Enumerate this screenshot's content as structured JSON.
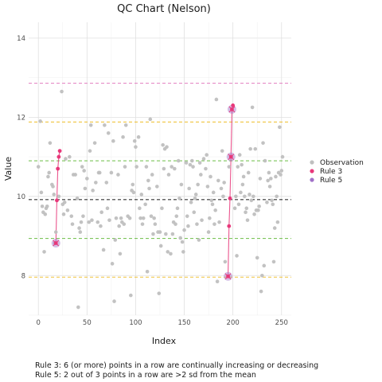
{
  "chart_data": {
    "type": "scatter",
    "title": "QC Chart (Nelson)",
    "xlabel": "Index",
    "ylabel": "Value",
    "xlim": [
      -10,
      260
    ],
    "ylim": [
      7.0,
      14.4
    ],
    "x_ticks": [
      0,
      50,
      100,
      150,
      200,
      250
    ],
    "y_ticks": [
      8,
      10,
      12,
      14
    ],
    "grid": true,
    "legend_position": "right",
    "reference_lines": {
      "mean": 9.92,
      "plus_1sd": 10.9,
      "minus_1sd": 8.94,
      "plus_2sd": 11.88,
      "minus_2sd": 7.96,
      "plus_3sd": 12.86
    },
    "series": [
      {
        "name": "Observation",
        "color": "#bfbfbf",
        "points": [
          [
            0,
            10.75
          ],
          [
            2,
            11.9
          ],
          [
            3,
            10.1
          ],
          [
            4,
            9.75
          ],
          [
            5,
            9.6
          ],
          [
            6,
            8.6
          ],
          [
            7,
            9.55
          ],
          [
            8,
            9.7
          ],
          [
            9,
            9.75
          ],
          [
            10,
            10.5
          ],
          [
            11,
            10.6
          ],
          [
            12,
            11.35
          ],
          [
            14,
            10.3
          ],
          [
            15,
            10.25
          ],
          [
            16,
            10.05
          ],
          [
            17,
            8.82
          ],
          [
            18,
            9.1
          ],
          [
            21,
            10.0
          ],
          [
            24,
            12.65
          ],
          [
            25,
            9.8
          ],
          [
            26,
            9.55
          ],
          [
            27,
            9.85
          ],
          [
            28,
            10.95
          ],
          [
            30,
            9.65
          ],
          [
            32,
            11.0
          ],
          [
            34,
            9.5
          ],
          [
            35,
            9.3
          ],
          [
            36,
            10.55
          ],
          [
            38,
            10.55
          ],
          [
            40,
            9.95
          ],
          [
            41,
            7.2
          ],
          [
            42,
            9.2
          ],
          [
            43,
            9.1
          ],
          [
            44,
            9.35
          ],
          [
            45,
            10.75
          ],
          [
            46,
            9.5
          ],
          [
            47,
            10.65
          ],
          [
            48,
            10.2
          ],
          [
            50,
            10.45
          ],
          [
            52,
            9.35
          ],
          [
            53,
            11.15
          ],
          [
            54,
            11.8
          ],
          [
            55,
            9.4
          ],
          [
            56,
            10.15
          ],
          [
            58,
            11.35
          ],
          [
            59,
            10.35
          ],
          [
            61,
            9.35
          ],
          [
            62,
            10.6
          ],
          [
            63,
            10.6
          ],
          [
            64,
            9.25
          ],
          [
            65,
            9.6
          ],
          [
            67,
            8.65
          ],
          [
            68,
            11.8
          ],
          [
            70,
            10.35
          ],
          [
            71,
            9.7
          ],
          [
            72,
            11.6
          ],
          [
            73,
            9.4
          ],
          [
            75,
            10.6
          ],
          [
            76,
            8.3
          ],
          [
            77,
            11.4
          ],
          [
            78,
            7.35
          ],
          [
            79,
            8.9
          ],
          [
            80,
            9.45
          ],
          [
            82,
            10.55
          ],
          [
            83,
            9.25
          ],
          [
            84,
            8.55
          ],
          [
            85,
            9.45
          ],
          [
            86,
            9.35
          ],
          [
            87,
            11.5
          ],
          [
            88,
            9.3
          ],
          [
            89,
            10.75
          ],
          [
            90,
            11.8
          ],
          [
            92,
            9.5
          ],
          [
            94,
            9.45
          ],
          [
            95,
            7.5
          ],
          [
            96,
            10.15
          ],
          [
            97,
            10.3
          ],
          [
            98,
            10.1
          ],
          [
            99,
            11.4
          ],
          [
            100,
            11.25
          ],
          [
            101,
            10.75
          ],
          [
            103,
            11.5
          ],
          [
            104,
            9.7
          ],
          [
            105,
            9.45
          ],
          [
            106,
            10.05
          ],
          [
            107,
            9.3
          ],
          [
            108,
            9.45
          ],
          [
            110,
            9.8
          ],
          [
            111,
            10.75
          ],
          [
            112,
            8.1
          ],
          [
            113,
            10.4
          ],
          [
            114,
            10.2
          ],
          [
            115,
            11.95
          ],
          [
            116,
            9.5
          ],
          [
            117,
            10.55
          ],
          [
            118,
            9.05
          ],
          [
            119,
            9.45
          ],
          [
            120,
            9.3
          ],
          [
            122,
            10.25
          ],
          [
            123,
            9.1
          ],
          [
            124,
            7.55
          ],
          [
            125,
            9.1
          ],
          [
            126,
            8.75
          ],
          [
            127,
            9.7
          ],
          [
            128,
            11.3
          ],
          [
            129,
            10.7
          ],
          [
            130,
            11.2
          ],
          [
            131,
            9.05
          ],
          [
            132,
            11.25
          ],
          [
            133,
            8.6
          ],
          [
            134,
            10.55
          ],
          [
            136,
            8.55
          ],
          [
            137,
            10.75
          ],
          [
            138,
            9.05
          ],
          [
            139,
            9.35
          ],
          [
            140,
            10.7
          ],
          [
            141,
            9.3
          ],
          [
            142,
            9.5
          ],
          [
            143,
            9.7
          ],
          [
            144,
            10.9
          ],
          [
            145,
            9.95
          ],
          [
            146,
            8.95
          ],
          [
            147,
            10.3
          ],
          [
            148,
            8.85
          ],
          [
            149,
            8.6
          ],
          [
            150,
            9.15
          ],
          [
            152,
            10.85
          ],
          [
            153,
            9.5
          ],
          [
            154,
            9.25
          ],
          [
            155,
            10.2
          ],
          [
            156,
            10.8
          ],
          [
            157,
            9.85
          ],
          [
            158,
            10.9
          ],
          [
            159,
            10.75
          ],
          [
            160,
            9.6
          ],
          [
            161,
            9.95
          ],
          [
            162,
            10.05
          ],
          [
            163,
            9.3
          ],
          [
            164,
            10.3
          ],
          [
            165,
            8.9
          ],
          [
            166,
            10.85
          ],
          [
            167,
            10.55
          ],
          [
            168,
            9.4
          ],
          [
            170,
            10.95
          ],
          [
            172,
            10.7
          ],
          [
            173,
            11.05
          ],
          [
            174,
            10.25
          ],
          [
            175,
            9.1
          ],
          [
            176,
            9.45
          ],
          [
            177,
            10.5
          ],
          [
            178,
            9.9
          ],
          [
            179,
            9.8
          ],
          [
            180,
            10.1
          ],
          [
            181,
            9.3
          ],
          [
            182,
            9.65
          ],
          [
            183,
            12.45
          ],
          [
            184,
            7.85
          ],
          [
            185,
            10.4
          ],
          [
            186,
            9.35
          ],
          [
            188,
            10.2
          ],
          [
            189,
            11.15
          ],
          [
            190,
            10.0
          ],
          [
            191,
            10.35
          ],
          [
            192,
            8.35
          ],
          [
            196,
            10.75
          ],
          [
            202,
            9.7
          ],
          [
            203,
            10.0
          ],
          [
            204,
            8.5
          ],
          [
            205,
            10.75
          ],
          [
            206,
            9.8
          ],
          [
            207,
            11.05
          ],
          [
            208,
            10.1
          ],
          [
            209,
            10.8
          ],
          [
            210,
            10.3
          ],
          [
            211,
            10.5
          ],
          [
            212,
            10.0
          ],
          [
            213,
            9.6
          ],
          [
            214,
            9.7
          ],
          [
            215,
            9.4
          ],
          [
            216,
            10.6
          ],
          [
            217,
            10.05
          ],
          [
            218,
            11.2
          ],
          [
            219,
            9.9
          ],
          [
            220,
            12.25
          ],
          [
            221,
            10.0
          ],
          [
            222,
            9.55
          ],
          [
            223,
            11.2
          ],
          [
            224,
            9.65
          ],
          [
            225,
            8.45
          ],
          [
            226,
            9.65
          ],
          [
            227,
            9.75
          ],
          [
            228,
            10.45
          ],
          [
            229,
            7.6
          ],
          [
            230,
            8.0
          ],
          [
            231,
            11.35
          ],
          [
            232,
            8.25
          ],
          [
            233,
            10.9
          ],
          [
            235,
            9.85
          ],
          [
            236,
            10.4
          ],
          [
            237,
            10.6
          ],
          [
            238,
            10.25
          ],
          [
            239,
            10.45
          ],
          [
            240,
            9.9
          ],
          [
            241,
            9.8
          ],
          [
            242,
            8.35
          ],
          [
            243,
            9.2
          ],
          [
            244,
            10.5
          ],
          [
            245,
            10.0
          ],
          [
            246,
            9.35
          ],
          [
            247,
            10.6
          ],
          [
            248,
            11.75
          ],
          [
            249,
            10.55
          ],
          [
            250,
            10.65
          ],
          [
            251,
            11.0
          ]
        ]
      },
      {
        "name": "Rule 3",
        "color": "#e8387a",
        "points": [
          [
            18,
            8.82
          ],
          [
            19,
            9.9
          ],
          [
            20,
            10.7
          ],
          [
            21,
            11.0
          ],
          [
            22,
            11.15
          ],
          [
            195,
            7.98
          ],
          [
            196,
            9.25
          ],
          [
            197,
            9.95
          ],
          [
            198,
            11.0
          ],
          [
            199,
            12.2
          ],
          [
            200,
            12.3
          ]
        ]
      },
      {
        "name": "Rule 5",
        "color": "#a070c8",
        "points": [
          [
            18,
            8.82
          ],
          [
            195,
            7.98
          ],
          [
            198,
            11.0
          ],
          [
            199,
            12.2
          ]
        ]
      }
    ],
    "annotations": [
      "Rule 3: 6 (or more) points in a row are continually increasing or decreasing",
      "Rule 5: 2 out of 3 points in a row are >2 sd from the mean"
    ]
  }
}
